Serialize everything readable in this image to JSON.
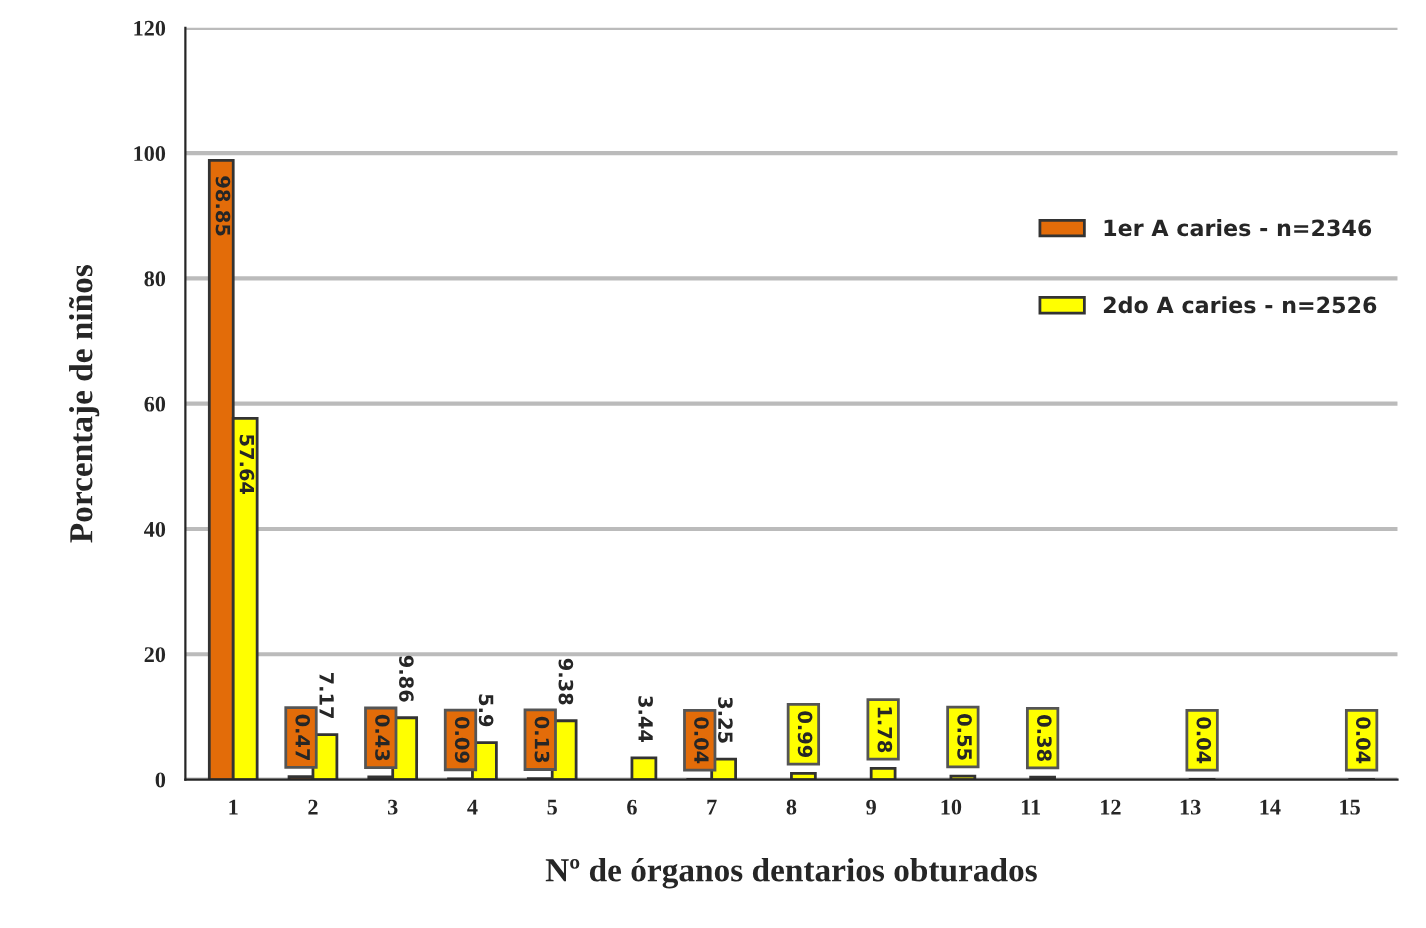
{
  "chart_data": {
    "type": "bar",
    "xlabel": "Nº de órganos dentarios obturados",
    "ylabel": "Porcentaje de niños",
    "categories": [
      "1",
      "2",
      "3",
      "4",
      "5",
      "6",
      "7",
      "8",
      "9",
      "10",
      "11",
      "12",
      "13",
      "14",
      "15"
    ],
    "series": [
      {
        "name": "1er A caries - n=2346",
        "color": "#e36c09",
        "values": [
          98.85,
          0.47,
          0.43,
          0.09,
          0.13,
          null,
          0.04,
          null,
          null,
          null,
          null,
          null,
          null,
          null,
          null
        ]
      },
      {
        "name": "2do A caries - n=2526",
        "color": "#ffff00",
        "values": [
          57.64,
          7.17,
          9.86,
          5.9,
          9.38,
          3.44,
          3.25,
          0.99,
          1.78,
          0.55,
          0.38,
          null,
          0.04,
          null,
          0.04
        ]
      }
    ],
    "ylim": [
      0,
      120
    ],
    "yticks": [
      0,
      20,
      40,
      60,
      80,
      100,
      120
    ],
    "grid": "y",
    "legend": "right",
    "data_labels": true
  }
}
